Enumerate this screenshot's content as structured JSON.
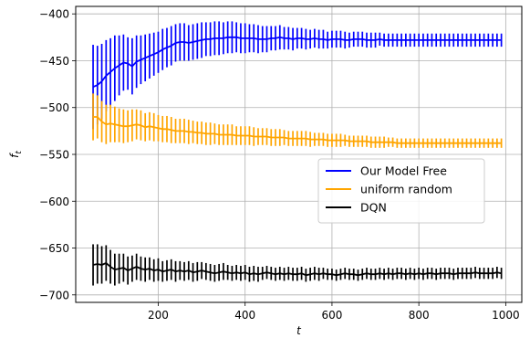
{
  "chart_data": {
    "type": "line",
    "xlabel": "t",
    "ylabel": "f_t",
    "xlim": [
      50,
      990
    ],
    "ylim": [
      -708,
      -392
    ],
    "x_ticks": [
      200,
      400,
      600,
      800,
      1000
    ],
    "y_ticks": [
      -400,
      -450,
      -500,
      -550,
      -600,
      -650,
      -700
    ],
    "grid": true,
    "legend_position": "center-right",
    "error_bars": true,
    "x_start": 50,
    "x_step": 10,
    "series": [
      {
        "name": "Our Model Free",
        "color": "#0000ff",
        "values": [
          -478,
          -476,
          -472,
          -466,
          -462,
          -458,
          -455,
          -452,
          -453,
          -456,
          -451,
          -449,
          -447,
          -445,
          -443,
          -441,
          -438,
          -436,
          -434,
          -431,
          -430,
          -430,
          -431,
          -430,
          -429,
          -428,
          -427,
          -427,
          -426,
          -426,
          -426,
          -425,
          -425,
          -425,
          -426,
          -426,
          -426,
          -426,
          -427,
          -427,
          -427,
          -426,
          -426,
          -425,
          -426,
          -426,
          -427,
          -426,
          -426,
          -427,
          -427,
          -426,
          -427,
          -427,
          -428,
          -427,
          -427,
          -427,
          -428,
          -428,
          -427,
          -427,
          -427,
          -428,
          -428,
          -428,
          -427,
          -428,
          -428,
          -428,
          -428,
          -428,
          -428,
          -428,
          -428,
          -428,
          -428,
          -428,
          -428,
          -428,
          -428,
          -428,
          -428,
          -428,
          -428,
          -428,
          -428,
          -428,
          -428,
          -428,
          -428,
          -428,
          -428,
          -428,
          -428
        ],
        "errors": [
          45,
          42,
          40,
          38,
          36,
          35,
          32,
          30,
          28,
          30,
          28,
          26,
          25,
          24,
          23,
          22,
          22,
          21,
          21,
          20,
          20,
          20,
          19,
          19,
          19,
          19,
          18,
          18,
          18,
          18,
          17,
          17,
          17,
          16,
          16,
          16,
          15,
          15,
          15,
          14,
          14,
          13,
          13,
          13,
          12,
          12,
          12,
          11,
          11,
          11,
          10,
          10,
          10,
          10,
          9,
          9,
          9,
          9,
          9,
          8,
          8,
          8,
          8,
          8,
          8,
          8,
          7,
          7,
          7,
          7,
          7,
          7,
          7,
          7,
          7,
          7,
          7,
          7,
          7,
          7,
          7,
          7,
          7,
          7,
          7,
          7,
          7,
          7,
          7,
          7,
          7,
          7,
          7,
          7,
          7
        ]
      },
      {
        "name": "uniform random",
        "color": "#ffa500",
        "values": [
          -510,
          -510,
          -515,
          -518,
          -517,
          -518,
          -519,
          -520,
          -520,
          -519,
          -518,
          -519,
          -521,
          -520,
          -521,
          -522,
          -523,
          -523,
          -524,
          -525,
          -525,
          -525,
          -526,
          -526,
          -527,
          -527,
          -528,
          -528,
          -528,
          -529,
          -529,
          -529,
          -529,
          -530,
          -530,
          -530,
          -530,
          -531,
          -531,
          -531,
          -531,
          -532,
          -532,
          -532,
          -532,
          -533,
          -533,
          -533,
          -533,
          -533,
          -534,
          -534,
          -534,
          -534,
          -535,
          -535,
          -535,
          -535,
          -535,
          -536,
          -536,
          -536,
          -536,
          -536,
          -537,
          -537,
          -537,
          -537,
          -537,
          -537,
          -538,
          -538,
          -538,
          -538,
          -538,
          -538,
          -538,
          -538,
          -538,
          -538,
          -538,
          -538,
          -538,
          -538,
          -538,
          -538,
          -538,
          -538,
          -538,
          -538,
          -538,
          -538,
          -538,
          -538,
          -538
        ],
        "errors": [
          25,
          23,
          22,
          21,
          20,
          19,
          18,
          18,
          17,
          17,
          16,
          16,
          15,
          15,
          15,
          14,
          14,
          14,
          14,
          13,
          13,
          13,
          13,
          12,
          12,
          12,
          12,
          12,
          11,
          11,
          11,
          11,
          11,
          10,
          10,
          10,
          10,
          10,
          9,
          9,
          9,
          9,
          9,
          9,
          8,
          8,
          8,
          8,
          8,
          8,
          8,
          7,
          7,
          7,
          7,
          7,
          7,
          7,
          6,
          6,
          6,
          6,
          6,
          6,
          6,
          6,
          6,
          6,
          5,
          5,
          5,
          5,
          5,
          5,
          5,
          5,
          5,
          5,
          5,
          5,
          5,
          5,
          5,
          5,
          5,
          5,
          5,
          5,
          5,
          5,
          5,
          5,
          5,
          5,
          5
        ]
      },
      {
        "name": "DQN",
        "color": "#000000",
        "values": [
          -668,
          -667,
          -668,
          -666,
          -670,
          -673,
          -672,
          -671,
          -674,
          -672,
          -670,
          -672,
          -673,
          -672,
          -674,
          -673,
          -675,
          -674,
          -673,
          -675,
          -674,
          -675,
          -674,
          -676,
          -675,
          -674,
          -675,
          -676,
          -677,
          -676,
          -675,
          -676,
          -677,
          -676,
          -677,
          -676,
          -678,
          -677,
          -678,
          -677,
          -676,
          -677,
          -678,
          -677,
          -678,
          -677,
          -678,
          -678,
          -677,
          -679,
          -678,
          -677,
          -678,
          -677,
          -678,
          -678,
          -679,
          -678,
          -677,
          -678,
          -678,
          -679,
          -678,
          -677,
          -678,
          -678,
          -677,
          -678,
          -677,
          -678,
          -677,
          -677,
          -678,
          -677,
          -678,
          -677,
          -678,
          -677,
          -677,
          -678,
          -677,
          -677,
          -677,
          -678,
          -677,
          -677,
          -677,
          -677,
          -676,
          -677,
          -677,
          -677,
          -677,
          -676,
          -677
        ],
        "errors": [
          22,
          21,
          20,
          19,
          18,
          17,
          16,
          15,
          15,
          14,
          14,
          13,
          13,
          12,
          12,
          12,
          11,
          11,
          11,
          11,
          10,
          10,
          10,
          10,
          10,
          9,
          9,
          9,
          9,
          9,
          9,
          8,
          8,
          8,
          8,
          8,
          8,
          8,
          8,
          7,
          7,
          7,
          7,
          7,
          7,
          7,
          7,
          7,
          7,
          7,
          7,
          7,
          7,
          6,
          6,
          6,
          6,
          6,
          6,
          6,
          6,
          6,
          6,
          6,
          6,
          6,
          6,
          6,
          6,
          6,
          6,
          6,
          6,
          6,
          6,
          6,
          6,
          6,
          6,
          6,
          6,
          6,
          6,
          6,
          6,
          6,
          6,
          6,
          6,
          6,
          6,
          6,
          6,
          6,
          6
        ]
      }
    ]
  }
}
